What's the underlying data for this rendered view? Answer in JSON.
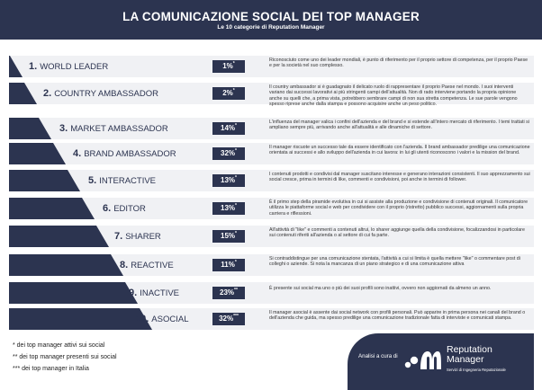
{
  "header": {
    "title": "LA COMUNICAZIONE SOCIAL DEI TOP MANAGER",
    "subtitle": "Le 10 categorie di Reputation Manager"
  },
  "colors": {
    "navy": "#2c3450",
    "row_bg": "#f0f1f4"
  },
  "categories": [
    {
      "num": "1.",
      "name": "WORLD LEADER",
      "pct": "1%",
      "mark": "*",
      "desc": "Riconosciuto come uno dei leader mondiali, è punto di riferimento per il proprio settore di competenza, per il proprio Paese e per la società nel suo complesso."
    },
    {
      "num": "2.",
      "name": "COUNTRY AMBASSADOR",
      "pct": "2%",
      "mark": "*",
      "desc": "Il country ambassador si è guadagnato il delicato ruolo di rappresentare il proprio Paese nel mondo. I suoi interventi variano dai successi lavorativi ai più stringenti campi dell'attualità. Non di rado interviene portando la propria opinione anche su quelli che, a prima vista, potrebbero sembrare campi di non sua stretta competenza. Le sue parole vengono spesso riprese anche dalla stampa e possono acquisire anche un peso politico."
    },
    {
      "num": "3.",
      "name": "MARKET AMBASSADOR",
      "pct": "14%",
      "mark": "*",
      "desc": "L'influenza del manager valica i confini dell'azienda e del brand e si estende all'intero mercato di riferimento. I temi trattati si ampliano sempre più, arrivando anche all'attualità e alle dinamiche di settore."
    },
    {
      "num": "4.",
      "name": "BRAND AMBASSADOR",
      "pct": "32%",
      "mark": "*",
      "desc": "Il manager riscuote un successo tale da essere identificato con l'azienda. Il brand ambassador predilige una comunicazione orientata ai successi e allo sviluppo dell'azienda in cui lavora: in lui gli utenti riconoscono i valori e la mission del brand."
    },
    {
      "num": "5.",
      "name": "INTERACTIVE",
      "pct": "13%",
      "mark": "*",
      "desc": "I contenuti prodotti e condivisi dal manager suscitano interesse e generano interazioni consistenti. Il suo apprezzamento sui social cresce, prima in termini di like, commenti e condivisioni, poi anche in termini di follower."
    },
    {
      "num": "6.",
      "name": "EDITOR",
      "pct": "13%",
      "mark": "*",
      "desc": "È il primo step della piramide evolutiva in cui si assiste alla produzione e condivisione di contenuti originali. Il comunicatore utilizza le piattaforme social e web per condividere con il proprio (ristretto) pubblico successi, aggiornamenti sulla propria carriera e riflessioni."
    },
    {
      "num": "7.",
      "name": "SHARER",
      "pct": "15%",
      "mark": "*",
      "desc": "All'attività di \"like\" e commenti a contenuti altrui, lo sharer aggiunge quella della condivisione, focalizzandosi in particolare sui contenuti riferiti all'azienda o al settore di cui fa parte."
    },
    {
      "num": "8.",
      "name": "REACTIVE",
      "pct": "11%",
      "mark": "*",
      "desc": "Si contraddistingue per una comunicazione stentata, l'attività a cui si limita è quella mettere \"like\" o commentare post di colleghi o aziende. Si nota la mancanza di un piano strategico e di una comunicazione attiva"
    },
    {
      "num": "9.",
      "name": "INACTIVE",
      "pct": "23%",
      "mark": "**",
      "desc": "È presente sui social ma uno o più dei suoi profili sono inattivi, ovvero non aggiornati da almeno un anno."
    },
    {
      "num": "10.",
      "name": "ASOCIAL",
      "pct": "32%",
      "mark": "***",
      "desc": "Il manager asocial è assente dai social network con profili personali. Può apparire in prima persona nei canali del brand o dell'azienda che guida, ma spesso predilige una comunicazione tradizionale fatta di interviste e comunicati stampa."
    }
  ],
  "notes": [
    "* dei top manager attivi sui social",
    "** dei top manager presenti sui social",
    "*** dei top manager in Italia"
  ],
  "footer": {
    "cura": "Analisi a cura di",
    "brand_line1": "Reputation",
    "brand_line2": "Manager",
    "tagline": "Servizi di Ingegneria Reputazionale",
    "logo_icon": "reputation-manager-logo-icon"
  }
}
